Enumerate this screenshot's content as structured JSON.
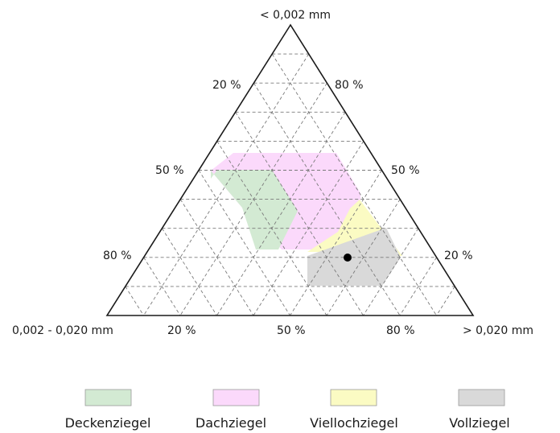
{
  "corners": {
    "top": "< 0,002 mm",
    "left": "0,002 - 0,020 mm",
    "right": "> 0,020 mm"
  },
  "tick_labels": {
    "left_side": [
      "20 %",
      "50 %",
      "80 %"
    ],
    "right_side": [
      "80 %",
      "50 %",
      "20 %"
    ],
    "bottom_side": [
      "20 %",
      "50 %",
      "80 %"
    ]
  },
  "colors": {
    "deckenziegel": "#d3ead3",
    "dachziegel": "#fbd9fb",
    "viellochziegel": "#fbfbc3",
    "vollziegel": "#d9d9d9",
    "point": "#000000",
    "frame": "#1a1a1a"
  },
  "regions": [
    {
      "name": "Dachziegel",
      "color_key": "dachziegel",
      "points": [
        [
          40,
          33
        ],
        [
          18,
          52
        ],
        [
          15,
          40
        ],
        [
          30,
          48
        ],
        [
          55,
          25
        ],
        [
          48,
          45
        ]
      ]
    },
    {
      "name": "Deckenziegel",
      "color_key": "deckenziegel",
      "points": [
        [
          55,
          25
        ],
        [
          40,
          33
        ],
        [
          15,
          40
        ]
      ]
    },
    {
      "name": "Viellochziegel",
      "color_key": "viellochziegel",
      "points": [
        [
          34,
          48
        ],
        [
          16,
          50
        ],
        [
          22,
          30
        ]
      ]
    },
    {
      "name": "Vollziegel",
      "color_key": "vollziegel",
      "points": [
        [
          20,
          25
        ],
        [
          5,
          65
        ],
        [
          5,
          40
        ]
      ]
    }
  ],
  "sample_point": {
    "clay": 20,
    "silt": 29,
    "sand": 51
  },
  "legend": [
    {
      "label": "Deckenziegel",
      "color_key": "deckenziegel"
    },
    {
      "label": "Dachziegel",
      "color_key": "dachziegel"
    },
    {
      "label": "Viellochziegel",
      "color_key": "viellochziegel"
    },
    {
      "label": "Vollziegel",
      "color_key": "vollziegel"
    }
  ]
}
